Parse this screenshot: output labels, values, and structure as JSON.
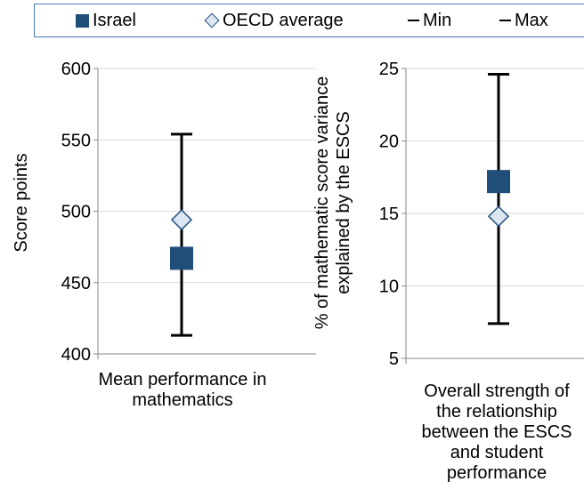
{
  "legend": {
    "israel": "Israel",
    "oecd": "OECD average",
    "min": "Min",
    "max": "Max"
  },
  "colors": {
    "israel": "#1f4e79",
    "oecd_fill": "#dce6f2",
    "oecd_stroke": "#1f4e79",
    "grid": "#d9d9d9",
    "legend_border": "#4a7ab5"
  },
  "chart_data": [
    {
      "type": "scatter",
      "title": "",
      "ylabel": "Score points",
      "ylim": [
        400,
        600
      ],
      "yticks": [
        400,
        450,
        500,
        550,
        600
      ],
      "category": "Mean performance in mathematics",
      "israel": 467,
      "oecd_average": 494,
      "min": 413,
      "max": 554,
      "grid": true
    },
    {
      "type": "scatter",
      "title": "",
      "ylabel": "% of mathematic score variance explained by the ESCS",
      "ylim": [
        5,
        25
      ],
      "yticks": [
        5,
        10,
        15,
        20,
        25
      ],
      "category": "Overall strength of the relationship between the ESCS and student performance",
      "israel": 17.2,
      "oecd_average": 14.8,
      "min": 7.4,
      "max": 24.6,
      "grid": true
    }
  ]
}
